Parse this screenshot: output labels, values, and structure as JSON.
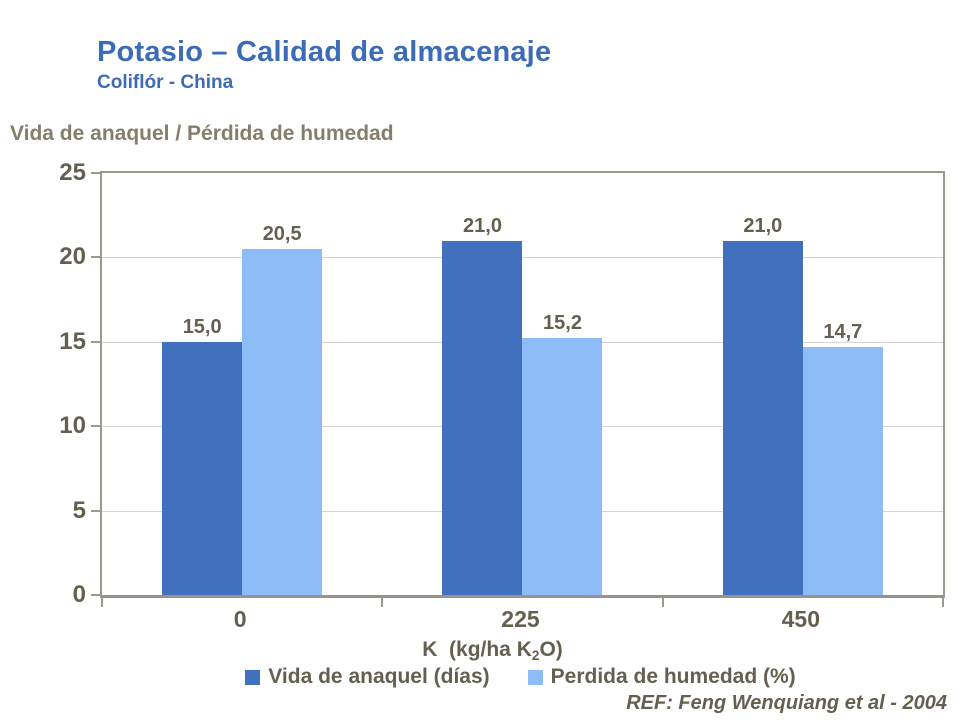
{
  "slide": {
    "title": "Potasio – Calidad de almacenaje",
    "subtitle": "Coliflór - China",
    "reference": "REF: Feng Wenquiang et al - 2004"
  },
  "chart_data": {
    "type": "bar",
    "title": "Vida de anaquel / Pérdida de humedad",
    "categories": [
      "0",
      "225",
      "450"
    ],
    "series": [
      {
        "name": "Vida de anaquel (días)",
        "values": [
          15.0,
          21.0,
          21.0
        ],
        "value_labels": [
          "15,0",
          "21,0",
          "21,0"
        ],
        "color": "#4170BE"
      },
      {
        "name": "Perdida de humedad (%)",
        "values": [
          20.5,
          15.2,
          14.7
        ],
        "value_labels": [
          "20,5",
          "15,2",
          "14,7"
        ],
        "color": "#8EBCF7"
      }
    ],
    "xlabel": {
      "prefix": "K  (kg/ha K",
      "subscript": "2",
      "suffix": "O)"
    },
    "ylabel": "",
    "ylim": [
      0,
      25
    ],
    "yticks": [
      "0",
      "5",
      "10",
      "15",
      "20",
      "25"
    ],
    "grid": "horizontal",
    "legend_position": "bottom"
  },
  "colors": {
    "title_blue": "#3C6CB8",
    "series1_dark_blue": "#4170BE",
    "series2_light_blue": "#8EBCF7",
    "axis_line": "#9E988E",
    "gridline": "#D7D5D1",
    "chart_title_text": "#857E69",
    "label_text": "#655F50"
  }
}
